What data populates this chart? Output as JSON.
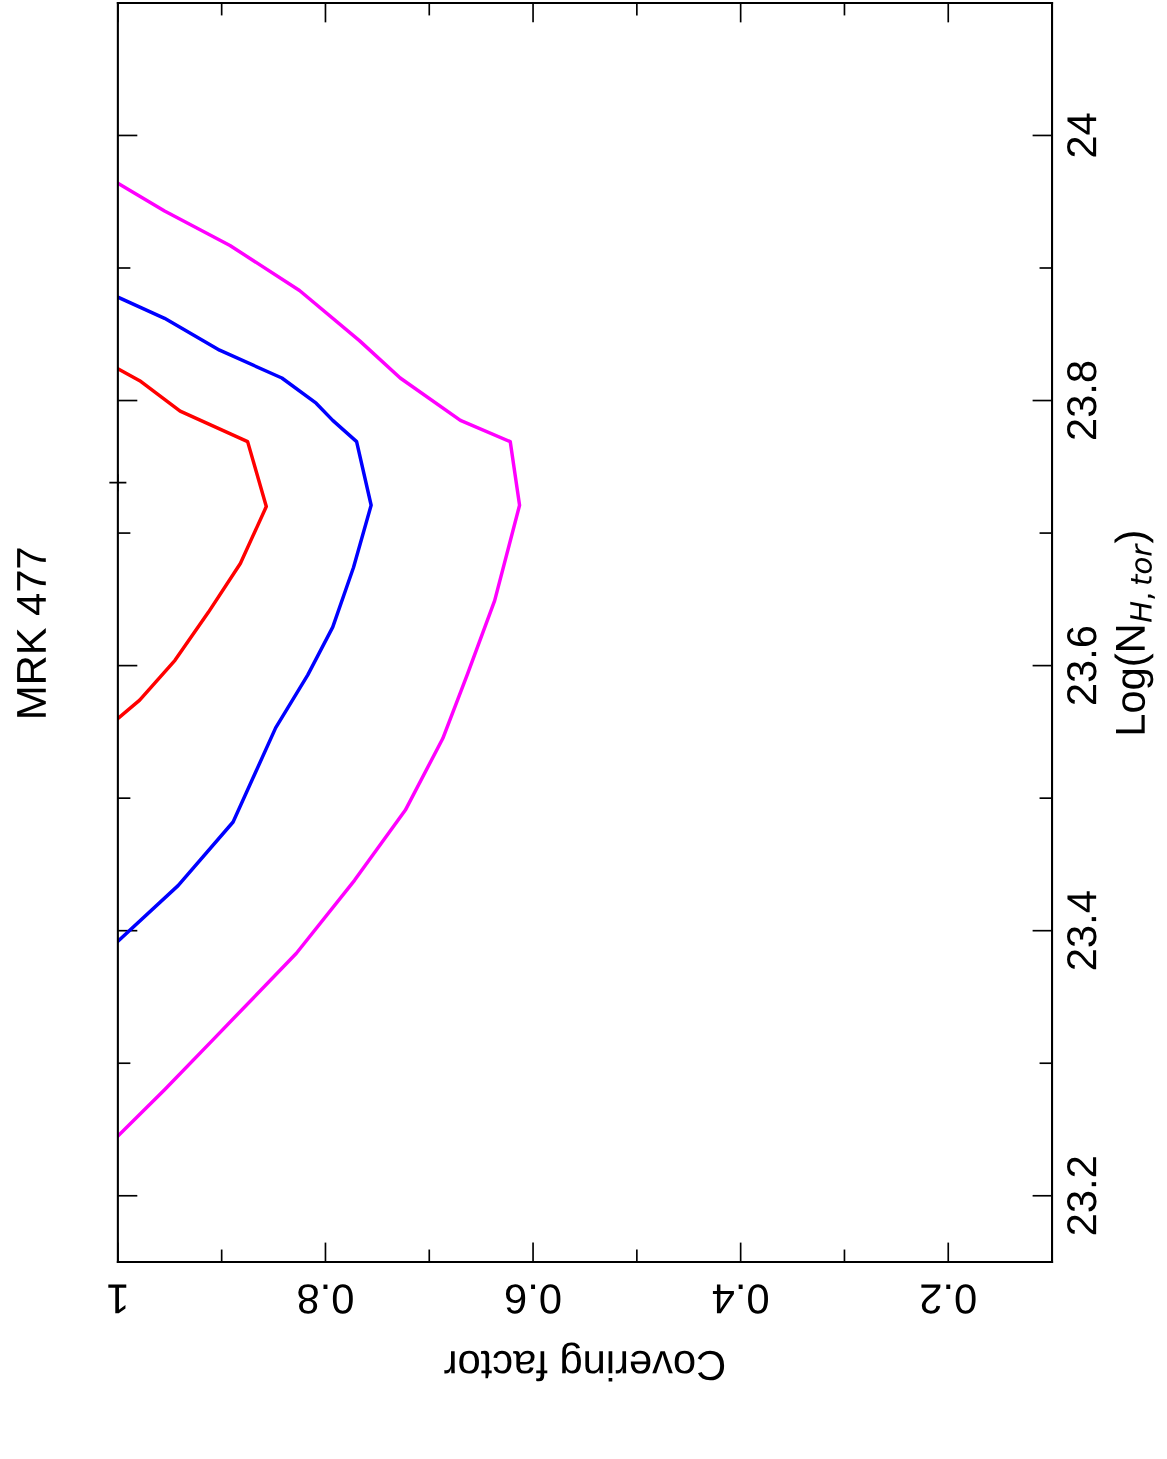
{
  "chart_data": {
    "type": "line",
    "title": "MRK 477",
    "xlabel": "Covering factor",
    "ylabel": "Log(N$_{H,tor}$)",
    "xlim": [
      1,
      0.1
    ],
    "ylim": [
      23.15,
      24.1
    ],
    "xticks": [
      {
        "value": 1,
        "label": "1"
      },
      {
        "value": 0.9,
        "label": null
      },
      {
        "value": 0.8,
        "label": "0.8"
      },
      {
        "value": 0.7,
        "label": null
      },
      {
        "value": 0.6,
        "label": "0.6"
      },
      {
        "value": 0.5,
        "label": null
      },
      {
        "value": 0.4,
        "label": "0.4"
      },
      {
        "value": 0.3,
        "label": null
      },
      {
        "value": 0.2,
        "label": "0.2"
      }
    ],
    "yticks": [
      {
        "value": 23.2,
        "label": "23.2"
      },
      {
        "value": 23.3,
        "label": null
      },
      {
        "value": 23.4,
        "label": "23.4"
      },
      {
        "value": 23.5,
        "label": null
      },
      {
        "value": 23.6,
        "label": "23.6"
      },
      {
        "value": 23.7,
        "label": null
      },
      {
        "value": 23.8,
        "label": "23.8"
      },
      {
        "value": 23.9,
        "label": null
      },
      {
        "value": 24,
        "label": "24"
      }
    ],
    "grid": false,
    "legend": false,
    "marker": "none",
    "line_style": "solid",
    "series": [
      {
        "color": "#ff0000",
        "x": [
          1.0,
          0.979,
          0.94,
          0.875,
          0.857,
          0.882,
          0.913,
          0.945,
          0.979,
          1.0
        ],
        "values": [
          23.824,
          23.815,
          23.792,
          23.769,
          23.72,
          23.677,
          23.64,
          23.604,
          23.574,
          23.56
        ]
      },
      {
        "color": "#0000ff",
        "x": [
          1.0,
          0.955,
          0.902,
          0.842,
          0.809,
          0.793,
          0.77,
          0.756,
          0.773,
          0.793,
          0.817,
          0.848,
          0.889,
          0.942,
          1.0
        ],
        "values": [
          23.878,
          23.862,
          23.838,
          23.817,
          23.798,
          23.785,
          23.769,
          23.721,
          23.674,
          23.629,
          23.593,
          23.553,
          23.482,
          23.434,
          23.392
        ]
      },
      {
        "color": "#ff00ff",
        "x": [
          1.0,
          0.955,
          0.892,
          0.825,
          0.767,
          0.728,
          0.67,
          0.622,
          0.613,
          0.637,
          0.663,
          0.687,
          0.723,
          0.772,
          0.828,
          0.908,
          0.955,
          1.0
        ],
        "values": [
          23.964,
          23.943,
          23.917,
          23.883,
          23.845,
          23.817,
          23.785,
          23.769,
          23.721,
          23.649,
          23.594,
          23.545,
          23.491,
          23.438,
          23.383,
          23.318,
          23.28,
          23.245
        ]
      },
      {
        "type": "scatter",
        "marker": "cross",
        "color": "#000000",
        "x": [
          1.0
        ],
        "values": [
          23.738
        ]
      }
    ]
  }
}
